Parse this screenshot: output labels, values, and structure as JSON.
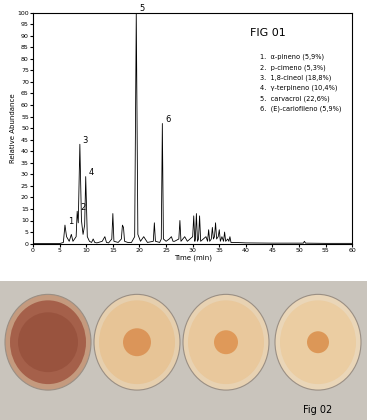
{
  "chart_data": {
    "type": "line",
    "title": "FIG 01",
    "x_label": "Time (min)",
    "y_label": "Relative Abundance",
    "xlim": [
      0,
      60
    ],
    "xticks": [
      0,
      5,
      10,
      15,
      20,
      25,
      30,
      35,
      40,
      45,
      50,
      55,
      60
    ],
    "ylim": [
      0,
      100
    ],
    "yticks": [
      0,
      5,
      10,
      15,
      20,
      25,
      30,
      35,
      40,
      45,
      50,
      55,
      60,
      65,
      70,
      75,
      80,
      85,
      90,
      95,
      100
    ],
    "grid": false,
    "series": [
      {
        "color": "#000000",
        "x": [
          0,
          5,
          5.7,
          6.0,
          6.3,
          6.8,
          7.2,
          7.5,
          7.8,
          8.1,
          8.3,
          8.5,
          8.8,
          9.1,
          9.4,
          9.7,
          9.9,
          10.2,
          10.6,
          11.0,
          11.3,
          11.6,
          12.0,
          13.0,
          13.5,
          13.8,
          14.2,
          14.8,
          15.0,
          15.2,
          16.0,
          16.6,
          16.8,
          17.0,
          17.2,
          17.8,
          18.5,
          19.1,
          19.4,
          19.7,
          20.2,
          20.8,
          21.5,
          22.6,
          22.8,
          23.0,
          23.8,
          24.1,
          24.3,
          24.5,
          25.0,
          25.6,
          26.0,
          26.3,
          26.6,
          27.4,
          27.6,
          27.8,
          28.5,
          29.0,
          29.5,
          30.0,
          30.2,
          30.4,
          30.5,
          30.7,
          30.9,
          31.1,
          31.3,
          31.5,
          32.0,
          32.5,
          32.8,
          33.0,
          33.2,
          33.5,
          33.7,
          33.9,
          34.1,
          34.3,
          34.5,
          34.8,
          35.0,
          35.2,
          35.5,
          35.8,
          36.0,
          36.2,
          36.6,
          36.8,
          37.0,
          37.2,
          38.0,
          40.0,
          45.0,
          50.8,
          51.0,
          51.2,
          55.0,
          60.0
        ],
        "values": [
          0,
          0,
          0.5,
          8,
          3,
          1,
          4,
          1,
          2,
          3,
          14,
          9,
          43,
          10,
          4,
          8,
          29,
          3,
          1,
          0.5,
          2,
          0.5,
          0.3,
          1,
          3,
          0.5,
          0.3,
          2,
          13,
          1,
          0.5,
          2,
          8,
          7,
          1,
          0.5,
          0.5,
          3,
          100,
          4,
          1,
          3,
          0.5,
          1,
          9,
          1,
          0.5,
          2,
          52,
          2,
          1,
          2,
          3,
          1,
          1,
          2,
          10,
          1,
          3,
          1,
          2,
          3,
          12,
          1,
          2,
          13,
          1,
          2,
          12,
          1,
          2,
          3,
          1,
          6,
          1,
          2,
          7,
          2,
          3,
          9,
          2,
          3,
          6,
          1,
          3,
          1,
          5,
          1,
          2,
          1,
          3,
          0.5,
          0.5,
          0.3,
          0.2,
          0.2,
          1,
          0.2,
          0.1,
          0.1
        ]
      }
    ],
    "peak_labels": [
      {
        "label": "1",
        "x": 6.0,
        "y": 8
      },
      {
        "label": "2",
        "x": 8.3,
        "y": 14
      },
      {
        "label": "3",
        "x": 8.8,
        "y": 43
      },
      {
        "label": "4",
        "x": 9.9,
        "y": 29
      },
      {
        "label": "5",
        "x": 19.4,
        "y": 100
      },
      {
        "label": "6",
        "x": 24.3,
        "y": 52
      }
    ],
    "annotations": [
      "1.  α-pineno (5,9%)",
      "2.  p-cimeno (5,3%)",
      "3.  1,8-cineol (18,8%)",
      "4.  γ-terpineno (10,4%)",
      "5.  carvacrol (22,6%)",
      "6.  (E)-cariofileno (5,9%)"
    ]
  },
  "image_caption": "Fig 02"
}
